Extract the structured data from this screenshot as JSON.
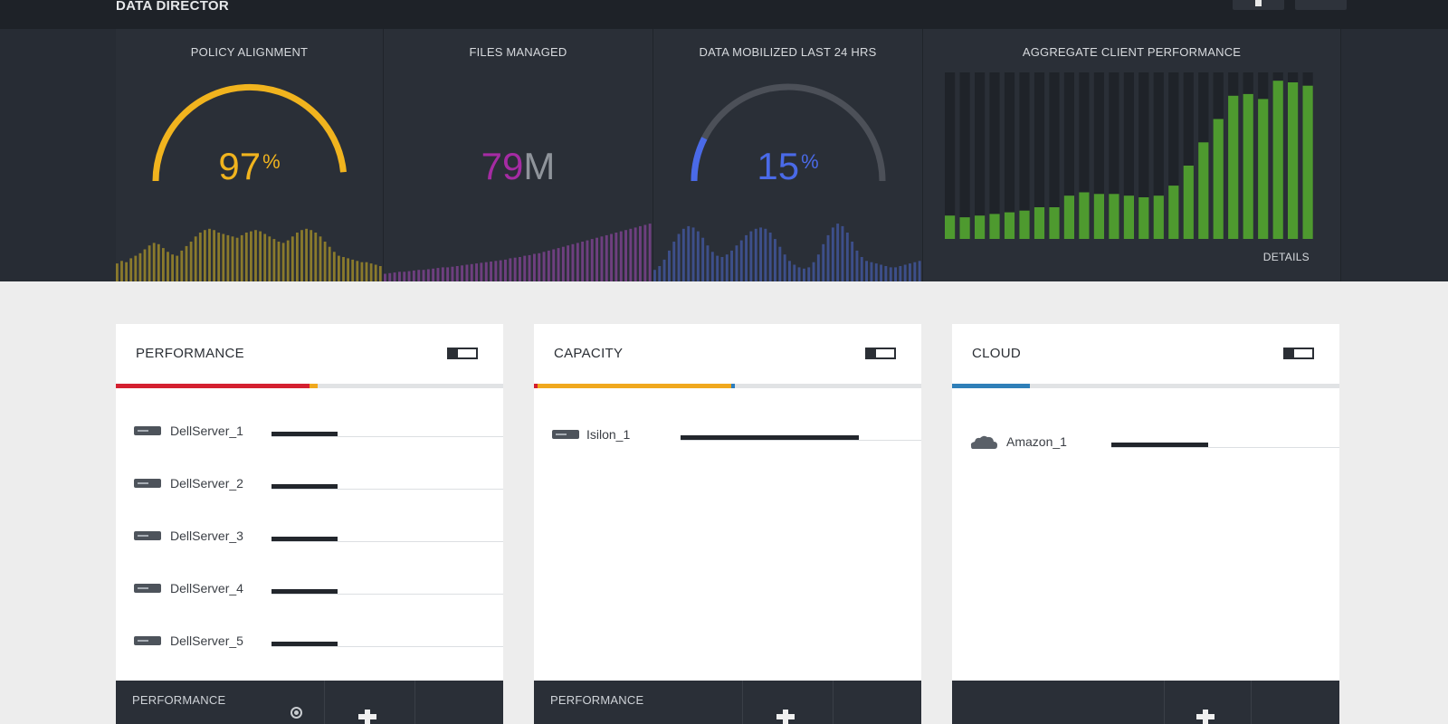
{
  "header": {
    "title": "DATA DIRECTOR"
  },
  "metrics": {
    "policy_alignment": {
      "title": "POLICY ALIGNMENT",
      "value": "97",
      "unit": "%",
      "fraction": 0.97,
      "color": "#f1b41e",
      "spark_color": "#8a7a2c",
      "spark": [
        0.28,
        0.32,
        0.3,
        0.36,
        0.4,
        0.44,
        0.5,
        0.56,
        0.6,
        0.58,
        0.52,
        0.46,
        0.42,
        0.4,
        0.48,
        0.55,
        0.62,
        0.7,
        0.76,
        0.8,
        0.82,
        0.8,
        0.76,
        0.74,
        0.72,
        0.7,
        0.68,
        0.72,
        0.76,
        0.78,
        0.8,
        0.78,
        0.74,
        0.7,
        0.66,
        0.62,
        0.6,
        0.64,
        0.7,
        0.76,
        0.8,
        0.82,
        0.8,
        0.76,
        0.7,
        0.62,
        0.54,
        0.46,
        0.4,
        0.38,
        0.36,
        0.34,
        0.32,
        0.3,
        0.3,
        0.28,
        0.26,
        0.24
      ]
    },
    "files_managed": {
      "title": "FILES MANAGED",
      "value": "79",
      "unit": "M",
      "value_color": "#a52ba3",
      "unit_color": "#8f949b",
      "spark_color": "#6e3f7f",
      "spark": [
        0.12,
        0.13,
        0.14,
        0.15,
        0.15,
        0.16,
        0.17,
        0.18,
        0.18,
        0.19,
        0.2,
        0.21,
        0.22,
        0.22,
        0.23,
        0.24,
        0.25,
        0.26,
        0.27,
        0.28,
        0.29,
        0.3,
        0.31,
        0.32,
        0.33,
        0.34,
        0.36,
        0.37,
        0.38,
        0.4,
        0.41,
        0.43,
        0.44,
        0.46,
        0.48,
        0.5,
        0.52,
        0.54,
        0.56,
        0.58,
        0.6,
        0.62,
        0.64,
        0.66,
        0.68,
        0.7,
        0.72,
        0.74,
        0.76,
        0.78,
        0.8,
        0.82,
        0.84,
        0.86,
        0.88,
        0.9
      ]
    },
    "data_mobilized": {
      "title": "DATA MOBILIZED LAST 24 HRS",
      "value": "15",
      "unit": "%",
      "fraction": 0.15,
      "color": "#4a6ae8",
      "track_color": "#4c5058",
      "spark_color": "#3d4f8a",
      "spark": [
        0.18,
        0.24,
        0.34,
        0.48,
        0.62,
        0.74,
        0.82,
        0.86,
        0.84,
        0.78,
        0.68,
        0.56,
        0.46,
        0.4,
        0.38,
        0.42,
        0.48,
        0.56,
        0.64,
        0.72,
        0.78,
        0.82,
        0.84,
        0.82,
        0.76,
        0.66,
        0.54,
        0.42,
        0.32,
        0.26,
        0.22,
        0.2,
        0.22,
        0.3,
        0.42,
        0.58,
        0.72,
        0.84,
        0.9,
        0.86,
        0.76,
        0.62,
        0.48,
        0.38,
        0.32,
        0.3,
        0.28,
        0.26,
        0.24,
        0.22,
        0.22,
        0.24,
        0.26,
        0.28,
        0.3,
        0.32
      ]
    },
    "aggregate": {
      "title": "AGGREGATE CLIENT PERFORMANCE",
      "details_label": "DETAILS",
      "bar_color": "#4e9a2f",
      "column_color": "#1f2329",
      "bars": [
        0.14,
        0.13,
        0.14,
        0.15,
        0.16,
        0.17,
        0.19,
        0.19,
        0.26,
        0.28,
        0.27,
        0.27,
        0.26,
        0.25,
        0.26,
        0.32,
        0.44,
        0.58,
        0.72,
        0.86,
        0.87,
        0.84,
        0.95,
        0.94,
        0.92
      ]
    }
  },
  "cards": [
    {
      "title": "PERFORMANCE",
      "status_segments": [
        {
          "fraction": 0.5,
          "color": "#d42030"
        },
        {
          "fraction": 0.02,
          "color": "#f0a81e"
        }
      ],
      "items": [
        {
          "name": "DellServer_1",
          "level": 0.17
        },
        {
          "name": "DellServer_2",
          "level": 0.17
        },
        {
          "name": "DellServer_3",
          "level": 0.17
        },
        {
          "name": "DellServer_4",
          "level": 0.17
        },
        {
          "name": "DellServer_5",
          "level": 0.17
        }
      ],
      "footer_label": "PERFORMANCE"
    },
    {
      "title": "CAPACITY",
      "status_segments": [
        {
          "fraction": 0.01,
          "color": "#d42030"
        },
        {
          "fraction": 0.5,
          "color": "#f0a81e"
        },
        {
          "fraction": 0.01,
          "color": "#2d7fc1"
        }
      ],
      "items": [
        {
          "name": "Isilon_1",
          "level": 0.46
        }
      ],
      "footer_label": "PERFORMANCE"
    },
    {
      "title": "CLOUD",
      "status_segments": [
        {
          "fraction": 0.2,
          "color": "#2f7fb8"
        }
      ],
      "items": [
        {
          "name": "Amazon_1",
          "level": 0.25
        }
      ],
      "footer_label": ""
    }
  ]
}
